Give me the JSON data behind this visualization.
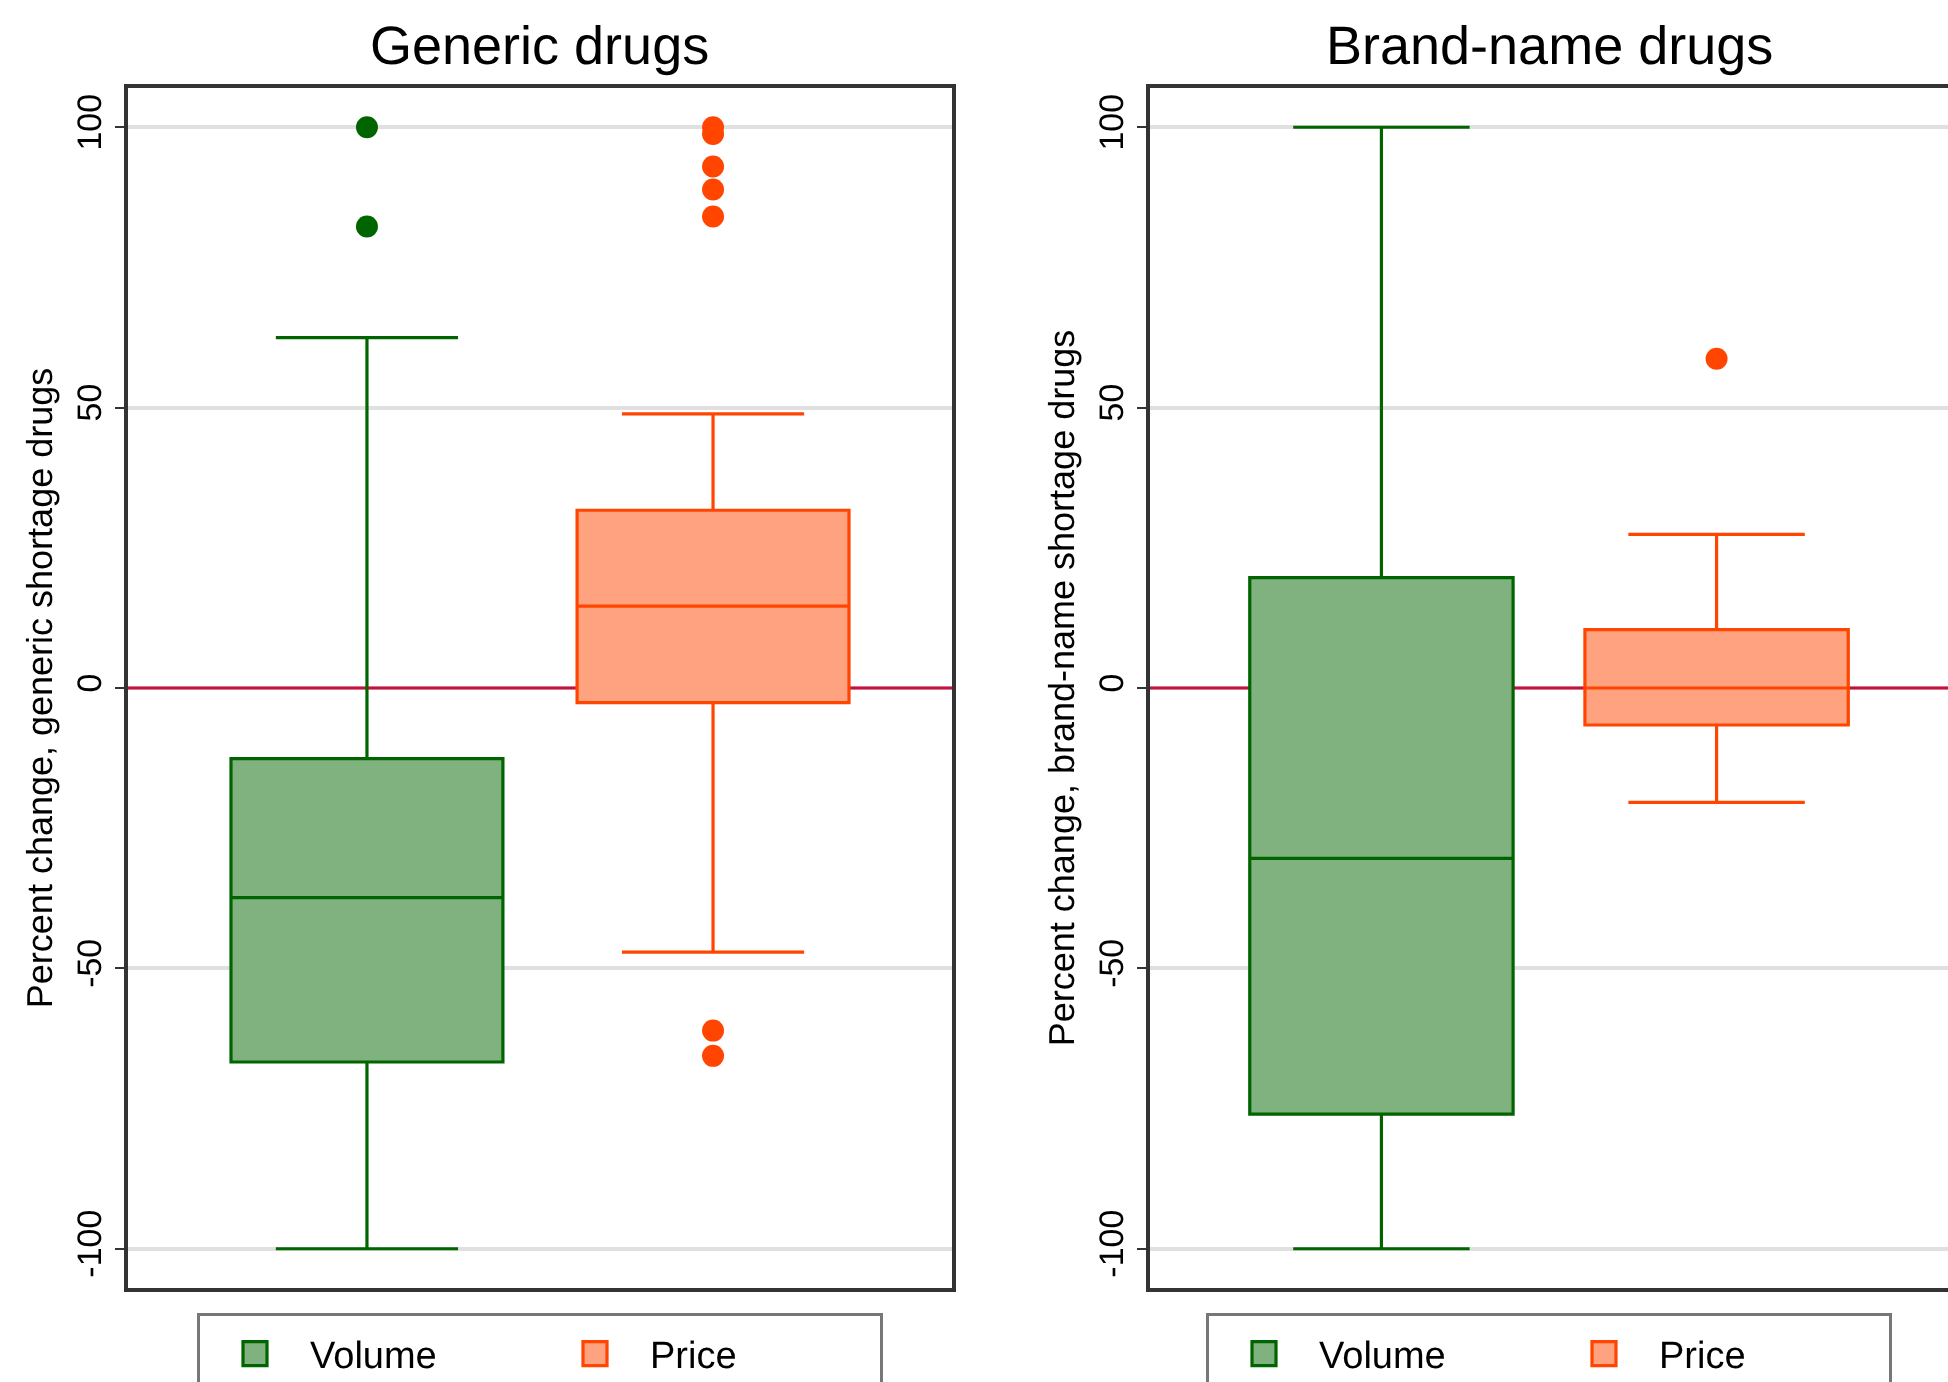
{
  "chart_data": [
    {
      "type": "box",
      "title": "Generic drugs",
      "ylabel": "Percent change, generic shortage drugs",
      "categories": [
        null
      ],
      "series": [
        {
          "name": "Volume",
          "color": "#006400",
          "boxes": [
            {
              "low": -100,
              "q1": -66.7,
              "median": -37.4,
              "q3": -12.6,
              "high": 62.5,
              "outliers": [
                82.3,
                100
              ]
            }
          ]
        },
        {
          "name": "Price",
          "color": "#ff4500",
          "boxes": [
            {
              "low": -47.1,
              "q1": -2.6,
              "median": 14.6,
              "q3": 31.7,
              "high": 48.9,
              "outliers": [
                100,
                98.8,
                93,
                88.9,
                84.1,
                -61.1,
                -65.6
              ]
            }
          ]
        }
      ],
      "ylim": [
        -107,
        107
      ],
      "yticks": [
        -100,
        -50,
        0,
        50,
        100
      ],
      "grid": "y",
      "legend": "bottom",
      "ref_lines": [
        {
          "axis": "y",
          "value": 0,
          "color": "#c8103c"
        }
      ]
    },
    {
      "type": "box",
      "title": "Brand-name drugs",
      "ylabel": "Percent change, brand-name shortage drugs",
      "categories": [
        null
      ],
      "series": [
        {
          "name": "Volume",
          "color": "#006400",
          "boxes": [
            {
              "low": -100,
              "q1": -76,
              "median": -30.4,
              "q3": 19.7,
              "high": 100
            }
          ]
        },
        {
          "name": "Price",
          "color": "#ff4500",
          "boxes": [
            {
              "low": -20.4,
              "q1": -6.6,
              "median": 0,
              "q3": 10.4,
              "high": 27.4,
              "outliers": [
                58.7
              ]
            }
          ]
        }
      ],
      "ylim": [
        -107,
        107
      ],
      "yticks": [
        -100,
        -50,
        0,
        50,
        100
      ],
      "grid": "y",
      "legend": "bottom",
      "ref_lines": [
        {
          "axis": "y",
          "value": 0,
          "color": "#c8103c"
        }
      ]
    }
  ]
}
